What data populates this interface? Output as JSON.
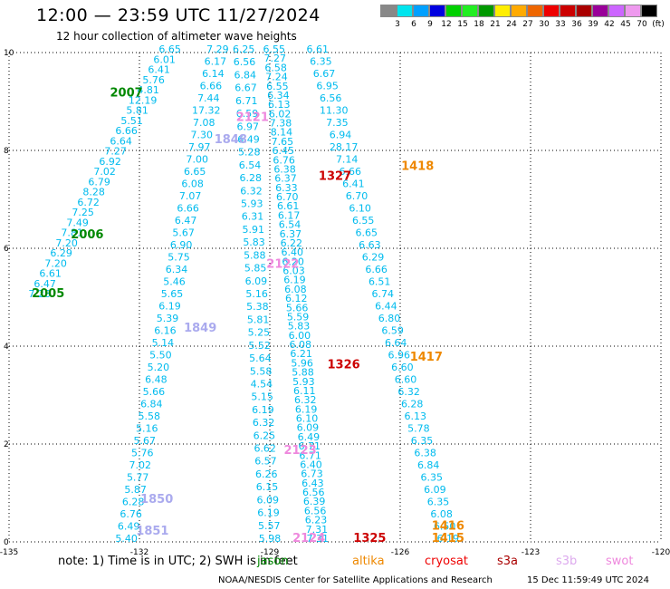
{
  "header": {
    "title": "12:00 — 23:59 UTC 11/27/2024",
    "subtitle": "12 hour collection of altimeter wave heights"
  },
  "color_scale": {
    "labels": [
      "3",
      "6",
      "9",
      "12",
      "15",
      "18",
      "21",
      "24",
      "27",
      "30",
      "33",
      "36",
      "39",
      "42",
      "45",
      "70",
      "(ft)"
    ],
    "colors": [
      "#888888",
      "#00e5ee",
      "#00a0ff",
      "#0000e0",
      "#00d000",
      "#22ee22",
      "#009900",
      "#ffee00",
      "#ffaa00",
      "#ee6600",
      "#ee0000",
      "#cc0000",
      "#aa0000",
      "#990099",
      "#cc66ff",
      "#ee99ee",
      "#000000"
    ]
  },
  "chart_data": {
    "type": "scatter",
    "x_ticks": [
      "-135",
      "-132",
      "-129",
      "-126",
      "-123",
      "-120"
    ],
    "y_ticks": [
      "0",
      "2",
      "4",
      "6",
      "8",
      "10"
    ],
    "xlim": [
      -135,
      -120
    ],
    "ylim": [
      0,
      10
    ],
    "grid": true,
    "tracks": [
      {
        "label": "2007",
        "satellite": "jason",
        "lon": -132.3,
        "lat": 9.1,
        "color": "#008800"
      },
      {
        "label": "2006",
        "satellite": "jason",
        "lon": -133.2,
        "lat": 6.2,
        "color": "#008800"
      },
      {
        "label": "2005",
        "satellite": "jason",
        "lon": -134.1,
        "lat": 5.0,
        "color": "#008800"
      },
      {
        "label": "1849",
        "satellite": "swot",
        "lon": -130.6,
        "lat": 4.3,
        "color": "#aaaaee"
      },
      {
        "label": "1850",
        "satellite": "swot",
        "lon": -131.6,
        "lat": 0.8,
        "color": "#aaaaee"
      },
      {
        "label": "1851",
        "satellite": "swot",
        "lon": -131.7,
        "lat": 0.15,
        "color": "#aaaaee"
      },
      {
        "label": "1848",
        "satellite": "swot",
        "lon": -129.9,
        "lat": 8.15,
        "color": "#aaaaee"
      },
      {
        "label": "2121",
        "satellite": "s3b",
        "lon": -129.4,
        "lat": 8.6,
        "color": "#ee88dd"
      },
      {
        "label": "2122",
        "satellite": "s3b",
        "lon": -128.7,
        "lat": 5.6,
        "color": "#ee88dd"
      },
      {
        "label": "2123",
        "satellite": "s3b",
        "lon": -128.3,
        "lat": 1.8,
        "color": "#ee88dd"
      },
      {
        "label": "2124",
        "satellite": "s3b",
        "lon": -128.1,
        "lat": 0.0,
        "color": "#ee88dd"
      },
      {
        "label": "1327",
        "satellite": "s3a",
        "lon": -127.5,
        "lat": 7.4,
        "color": "#cc0000"
      },
      {
        "label": "1326",
        "satellite": "s3a",
        "lon": -127.3,
        "lat": 3.55,
        "color": "#cc0000"
      },
      {
        "label": "1325",
        "satellite": "s3a",
        "lon": -126.7,
        "lat": 0.0,
        "color": "#cc0000"
      },
      {
        "label": "1418",
        "satellite": "altika",
        "lon": -125.6,
        "lat": 7.6,
        "color": "#ee8800"
      },
      {
        "label": "1417",
        "satellite": "altika",
        "lon": -125.4,
        "lat": 3.7,
        "color": "#ee8800"
      },
      {
        "label": "1416",
        "satellite": "altika",
        "lon": -124.9,
        "lat": 0.25,
        "color": "#ee8800"
      },
      {
        "label": "1415",
        "satellite": "altika",
        "lon": -124.9,
        "lat": 0.0,
        "color": "#ee8800"
      }
    ],
    "passes": [
      {
        "name": "pass-2007",
        "color": "#00bbee",
        "lon_start": -131.3,
        "lat_start": 10.0,
        "lon_end": -134.3,
        "lat_end": 5.0,
        "values": [
          "6.65",
          "6.01",
          "6.41",
          "5.76",
          "4.81",
          "12.19",
          "5.81",
          "5.51",
          "6.66",
          "6.64",
          "7.27",
          "6.92",
          "7.02",
          "6.79",
          "8.28",
          "6.72",
          "7.25",
          "7.49",
          "7.81",
          "7.20",
          "6.29",
          "7.20",
          "6.61",
          "6.47",
          "7.28"
        ]
      },
      {
        "name": "pass-1848",
        "color": "#00bbee",
        "lon_start": -130.2,
        "lat_start": 10.0,
        "lon_end": -132.3,
        "lat_end": 0.0,
        "values": [
          "7.29",
          "6.17",
          "6.14",
          "6.66",
          "7.44",
          "17.32",
          "7.08",
          "7.30",
          "7.97",
          "7.00",
          "6.65",
          "6.08",
          "7.07",
          "6.66",
          "6.47",
          "5.67",
          "6.90",
          "5.75",
          "6.34",
          "5.46",
          "5.65",
          "6.19",
          "5.39",
          "6.16",
          "5.14",
          "5.50",
          "5.20",
          "6.48",
          "5.66",
          "6.84",
          "5.58",
          "5.16",
          "5.67",
          "5.76",
          "7.02",
          "5.77",
          "5.87",
          "6.28",
          "6.76",
          "6.49",
          "5.40"
        ]
      },
      {
        "name": "pass-1849",
        "color": "#00bbee",
        "lon_start": -129.6,
        "lat_start": 10.0,
        "lon_end": -129.0,
        "lat_end": 0.0,
        "values": [
          "6.25",
          "6.56",
          "6.84",
          "6.67",
          "6.71",
          "6.59",
          "6.97",
          "6.49",
          "5.28",
          "6.54",
          "6.28",
          "6.32",
          "5.93",
          "6.31",
          "5.91",
          "5.83",
          "5.88",
          "5.85",
          "6.09",
          "5.16",
          "5.38",
          "5.81",
          "5.25",
          "5.52",
          "5.64",
          "5.58",
          "4.54",
          "5.15",
          "6.19",
          "6.32",
          "6.25",
          "6.62",
          "6.57",
          "6.26",
          "6.15",
          "6.09",
          "6.19",
          "5.57",
          "5.98"
        ]
      },
      {
        "name": "pass-2121",
        "color": "#00bbee",
        "lon_start": -128.9,
        "lat_start": 10.0,
        "lon_end": -127.9,
        "lat_end": 0.0,
        "values": [
          "6.55",
          "7.27",
          "6.58",
          "7.24",
          "6.55",
          "6.34",
          "6.13",
          "6.02",
          "7.38",
          "8.14",
          "7.65",
          "6.45",
          "6.76",
          "6.38",
          "6.37",
          "6.33",
          "6.70",
          "6.61",
          "6.17",
          "6.54",
          "6.37",
          "6.22",
          "6.40",
          "6.20",
          "6.03",
          "6.19",
          "6.08",
          "6.12",
          "5.66",
          "5.59",
          "5.83",
          "6.00",
          "6.08",
          "6.21",
          "5.96",
          "5.88",
          "5.93",
          "6.11",
          "6.32",
          "6.19",
          "6.10",
          "6.09",
          "6.49",
          "6.71",
          "6.71",
          "6.40",
          "6.73",
          "6.43",
          "6.56",
          "6.39",
          "6.56",
          "6.23",
          "7.31",
          "7.31"
        ]
      },
      {
        "name": "pass-1327",
        "color": "#00bbee",
        "lon_start": -127.9,
        "lat_start": 10.0,
        "lon_end": -124.9,
        "lat_end": 0.0,
        "values": [
          "6.61",
          "6.35",
          "6.67",
          "6.95",
          "6.56",
          "11.30",
          "7.35",
          "6.94",
          "28.17",
          "7.14",
          "6.66",
          "6.41",
          "6.70",
          "6.10",
          "6.55",
          "6.65",
          "6.63",
          "6.29",
          "6.66",
          "6.51",
          "6.74",
          "6.44",
          "6.80",
          "6.59",
          "6.64",
          "6.96",
          "6.60",
          "6.60",
          "6.32",
          "6.28",
          "6.13",
          "5.78",
          "6.35",
          "6.38",
          "6.84",
          "6.35",
          "6.09",
          "6.35",
          "6.08",
          "6.50",
          "6.19"
        ]
      }
    ]
  },
  "footer": {
    "note": "note:  1) Time is in UTC;  2) SWH is in feet",
    "satellites": [
      {
        "name": "jason",
        "color": "#008800"
      },
      {
        "name": "altika",
        "color": "#ee8800"
      },
      {
        "name": "cryosat",
        "color": "#ee0000"
      },
      {
        "name": "s3a",
        "color": "#aa0000"
      },
      {
        "name": "s3b",
        "color": "#ddaaee"
      },
      {
        "name": "swot",
        "color": "#ee88dd"
      }
    ],
    "credit": "NOAA/NESDIS Center for Satellite Applications and Research",
    "timestamp": "15 Dec 11:59:49 UTC 2024"
  }
}
